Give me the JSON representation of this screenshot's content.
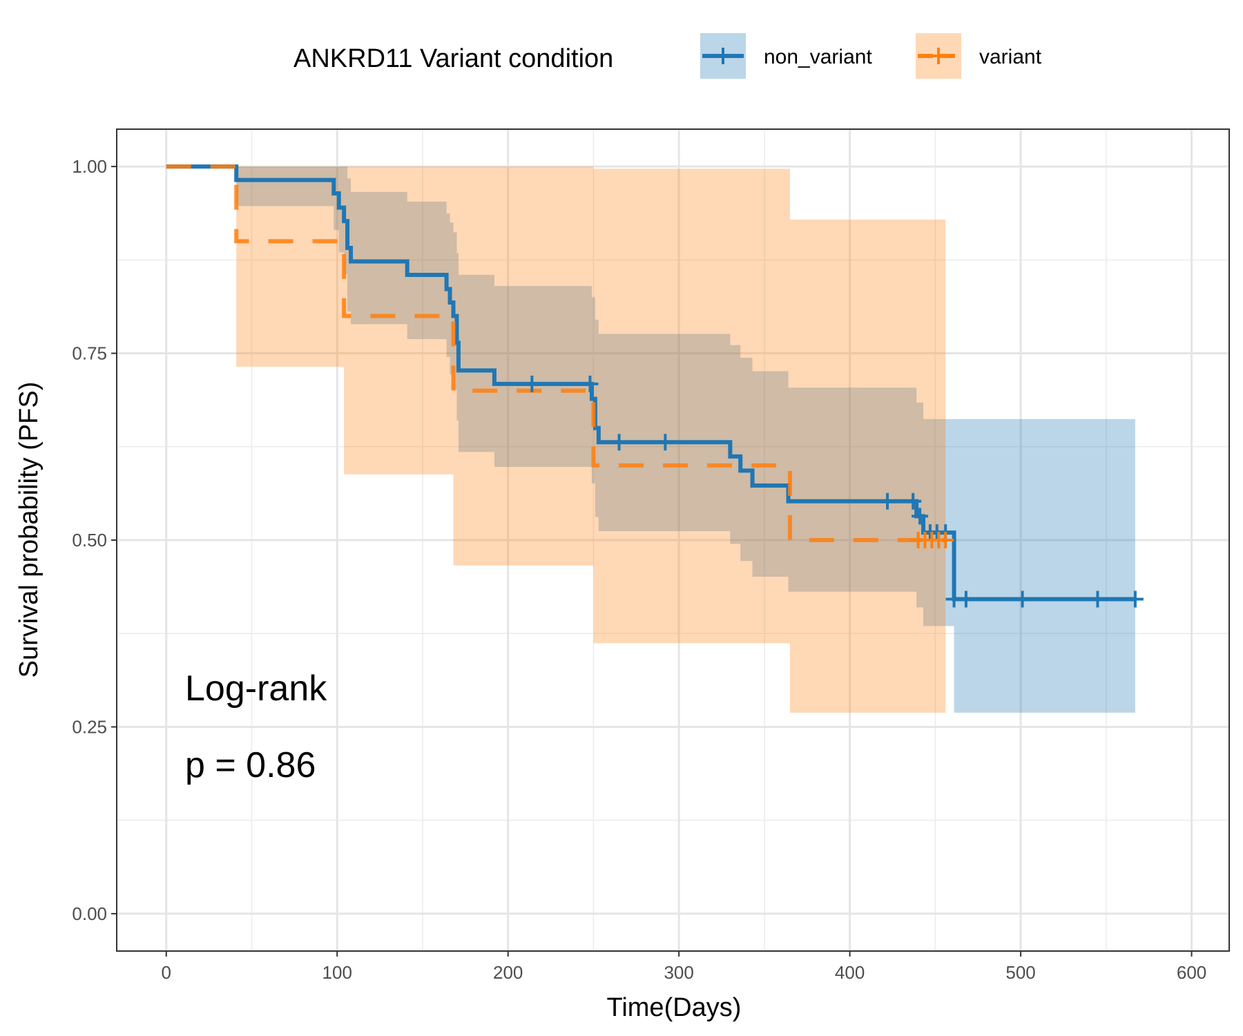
{
  "chart_data": {
    "type": "kaplan-meier",
    "legend_title": "ANKRD11 Variant condition",
    "legend_position": "top",
    "xlabel": "Time(Days)",
    "ylabel": "Survival probability (PFS)",
    "xlim": [
      -29,
      622
    ],
    "ylim": [
      -0.05,
      1.05
    ],
    "x_ticks": [
      0,
      100,
      200,
      300,
      400,
      500,
      600
    ],
    "x_tick_labels": [
      "0",
      "100",
      "200",
      "300",
      "400",
      "500",
      "600"
    ],
    "y_ticks": [
      0,
      0.25,
      0.5,
      0.75,
      1.0
    ],
    "y_tick_labels": [
      "0.00",
      "0.25",
      "0.50",
      "0.75",
      "1.00"
    ],
    "grid": true,
    "annotations": [
      "Log-rank",
      "p = 0.86"
    ],
    "series": [
      {
        "name": "variant",
        "color": "#ff7f0e",
        "line_style": "dashed",
        "steps": [
          [
            0,
            1.0
          ],
          [
            41,
            0.9
          ],
          [
            104,
            0.8
          ],
          [
            168,
            0.7
          ],
          [
            250,
            0.6
          ],
          [
            365,
            0.5
          ],
          [
            456,
            0.5
          ]
        ],
        "ci": [
          {
            "x0": 0,
            "x1": 41,
            "lo": 1.0,
            "hi": 1.0
          },
          {
            "x0": 41,
            "x1": 104,
            "lo": 0.732,
            "hi": 1.0
          },
          {
            "x0": 104,
            "x1": 168,
            "lo": 0.588,
            "hi": 1.0
          },
          {
            "x0": 168,
            "x1": 250,
            "lo": 0.466,
            "hi": 1.0
          },
          {
            "x0": 250,
            "x1": 365,
            "lo": 0.362,
            "hi": 0.997
          },
          {
            "x0": 365,
            "x1": 456,
            "lo": 0.269,
            "hi": 0.929
          }
        ],
        "censor": [
          440,
          444,
          448,
          452,
          456
        ]
      },
      {
        "name": "non_variant",
        "color": "#1f77b4",
        "line_style": "solid",
        "steps": [
          [
            0,
            1.0
          ],
          [
            41,
            0.982
          ],
          [
            98,
            0.964
          ],
          [
            101,
            0.945
          ],
          [
            104,
            0.927
          ],
          [
            106,
            0.891
          ],
          [
            108,
            0.873
          ],
          [
            141,
            0.855
          ],
          [
            164,
            0.836
          ],
          [
            166,
            0.818
          ],
          [
            168,
            0.8
          ],
          [
            170,
            0.764
          ],
          [
            171,
            0.727
          ],
          [
            192,
            0.709
          ],
          [
            249,
            0.689
          ],
          [
            251,
            0.65
          ],
          [
            253,
            0.631
          ],
          [
            330,
            0.612
          ],
          [
            336,
            0.593
          ],
          [
            343,
            0.573
          ],
          [
            364,
            0.552
          ],
          [
            439,
            0.532
          ],
          [
            443,
            0.51
          ],
          [
            461,
            0.421
          ],
          [
            567,
            0.421
          ]
        ],
        "ci": [
          {
            "x0": 0,
            "x1": 41,
            "lo": 1.0,
            "hi": 1.0
          },
          {
            "x0": 41,
            "x1": 98,
            "lo": 0.947,
            "hi": 1.0
          },
          {
            "x0": 98,
            "x1": 101,
            "lo": 0.915,
            "hi": 1.0
          },
          {
            "x0": 101,
            "x1": 104,
            "lo": 0.885,
            "hi": 1.0
          },
          {
            "x0": 104,
            "x1": 106,
            "lo": 0.856,
            "hi": 1.0
          },
          {
            "x0": 106,
            "x1": 108,
            "lo": 0.806,
            "hi": 0.984
          },
          {
            "x0": 108,
            "x1": 141,
            "lo": 0.789,
            "hi": 0.966
          },
          {
            "x0": 141,
            "x1": 164,
            "lo": 0.769,
            "hi": 0.953
          },
          {
            "x0": 164,
            "x1": 166,
            "lo": 0.745,
            "hi": 0.937
          },
          {
            "x0": 166,
            "x1": 168,
            "lo": 0.722,
            "hi": 0.925
          },
          {
            "x0": 168,
            "x1": 170,
            "lo": 0.701,
            "hi": 0.912
          },
          {
            "x0": 170,
            "x1": 171,
            "lo": 0.66,
            "hi": 0.884
          },
          {
            "x0": 171,
            "x1": 192,
            "lo": 0.618,
            "hi": 0.855
          },
          {
            "x0": 192,
            "x1": 249,
            "lo": 0.598,
            "hi": 0.84
          },
          {
            "x0": 249,
            "x1": 251,
            "lo": 0.576,
            "hi": 0.825
          },
          {
            "x0": 251,
            "x1": 253,
            "lo": 0.531,
            "hi": 0.795
          },
          {
            "x0": 253,
            "x1": 330,
            "lo": 0.512,
            "hi": 0.776
          },
          {
            "x0": 330,
            "x1": 336,
            "lo": 0.495,
            "hi": 0.761
          },
          {
            "x0": 336,
            "x1": 343,
            "lo": 0.472,
            "hi": 0.744
          },
          {
            "x0": 343,
            "x1": 364,
            "lo": 0.451,
            "hi": 0.726
          },
          {
            "x0": 364,
            "x1": 439,
            "lo": 0.431,
            "hi": 0.704
          },
          {
            "x0": 439,
            "x1": 443,
            "lo": 0.41,
            "hi": 0.684
          },
          {
            "x0": 443,
            "x1": 461,
            "lo": 0.385,
            "hi": 0.662
          },
          {
            "x0": 461,
            "x1": 567,
            "lo": 0.269,
            "hi": 0.662
          }
        ],
        "censor": [
          214,
          248,
          265,
          292,
          422,
          437,
          441,
          447,
          451,
          456,
          461,
          468,
          501,
          545,
          567
        ]
      }
    ]
  }
}
